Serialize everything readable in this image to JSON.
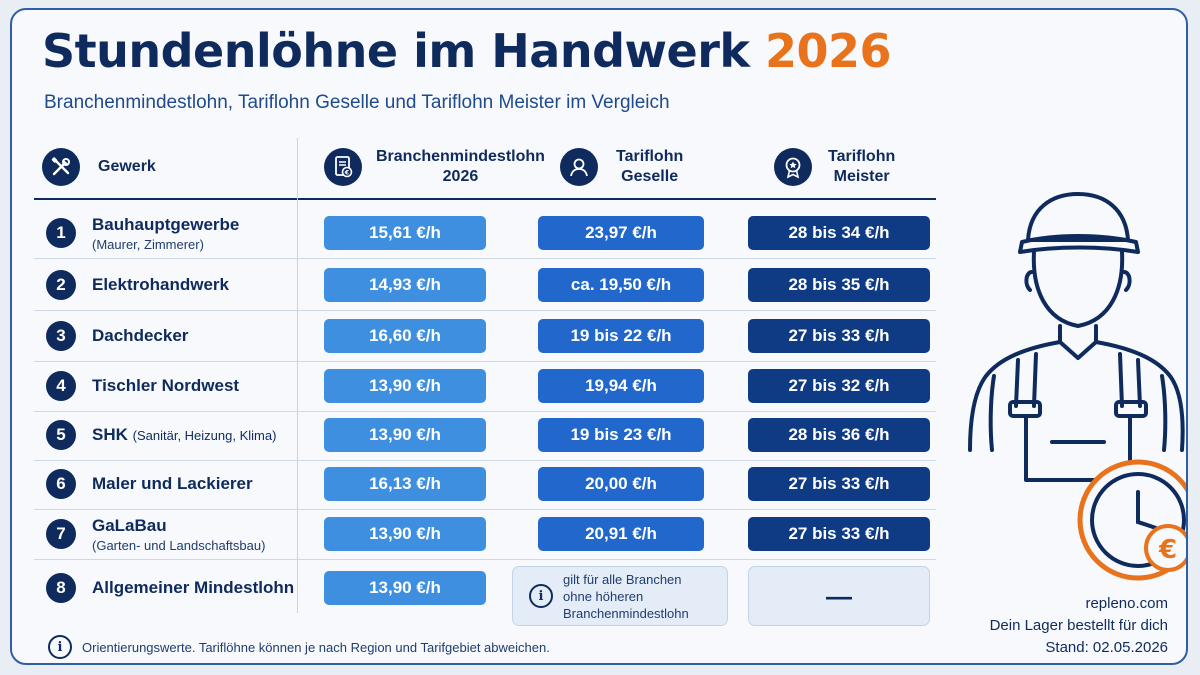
{
  "title": {
    "main": "Stundenlöhne im Handwerk",
    "year": "2026"
  },
  "subtitle": "Branchenmindestlohn, Tariflohn Geselle und Tariflohn Meister im Vergleich",
  "header": {
    "trade": "Gewerk",
    "min_line1": "Branchenmindestlohn",
    "min_line2": "2026",
    "ges_line1": "Tariflohn",
    "ges_line2": "Geselle",
    "mei_line1": "Tariflohn",
    "mei_line2": "Meister"
  },
  "rows": [
    {
      "num": "1",
      "name": "Bauhauptgewerbe",
      "note": "(Maurer, Zimmerer)",
      "min": "15,61 €/h",
      "ges": "23,97 €/h",
      "mei": "28 bis 34 €/h"
    },
    {
      "num": "2",
      "name": "Elektrohandwerk",
      "min": "14,93 €/h",
      "ges": "ca. 19,50 €/h",
      "mei": "28 bis 35 €/h"
    },
    {
      "num": "3",
      "name": "Dachdecker",
      "min": "16,60 €/h",
      "ges": "19 bis 22 €/h",
      "mei": "27 bis 33 €/h"
    },
    {
      "num": "4",
      "name": "Tischler Nordwest",
      "min": "13,90 €/h",
      "ges": "19,94 €/h",
      "mei": "27 bis 32 €/h"
    },
    {
      "num": "5",
      "name": "SHK",
      "inline_note": "(Sanitär, Heizung, Klima)",
      "min": "13,90 €/h",
      "ges": "19 bis 23 €/h",
      "mei": "28 bis 36 €/h"
    },
    {
      "num": "6",
      "name": "Maler und Lackierer",
      "min": "16,13 €/h",
      "ges": "20,00 €/h",
      "mei": "27 bis 33 €/h"
    },
    {
      "num": "7",
      "name": "GaLaBau",
      "note": "(Garten- und Landschaftsbau)",
      "min": "13,90 €/h",
      "ges": "20,91 €/h",
      "mei": "27 bis 33 €/h"
    },
    {
      "num": "8",
      "name": "Allgemeiner Mindestlohn",
      "min": "13,90 €/h",
      "ges_info_line1": "gilt für alle Branchen",
      "ges_info_line2": "ohne höheren",
      "ges_info_line3": "Branchenmindestlohn",
      "mei": "—"
    }
  ],
  "info_glyph": "i",
  "footer_note": "Orientierungswerte. Tariflöhne können je nach Region und Tarifgebiet abweichen.",
  "brand": {
    "site": "repleno.com",
    "tagline": "Dein Lager bestellt für dich",
    "date": "Stand: 02.05.2026"
  },
  "euro_glyph": "€",
  "icons": [
    "tools-icon",
    "document-euro-icon",
    "person-icon",
    "award-star-icon",
    "info-icon",
    "worker-illustration",
    "clock-euro-icon"
  ],
  "colors": {
    "navy": "#0f2a5c",
    "orange": "#e8731c",
    "min_pill": "#3f8fe0",
    "ges_pill": "#2167cc",
    "mei_pill": "#0f3a84"
  }
}
